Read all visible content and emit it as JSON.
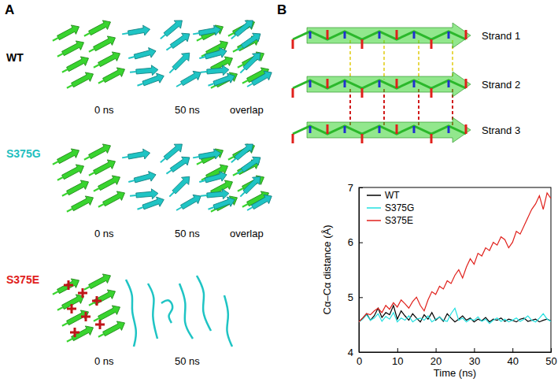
{
  "panel_labels": [
    "A",
    "B"
  ],
  "panel_a": {
    "rows": [
      {
        "label": "WT",
        "color": "#000000",
        "times": [
          "0 ns",
          "50 ns",
          "overlap"
        ]
      },
      {
        "label": "S375G",
        "color": "#1fbfbf",
        "times": [
          "0 ns",
          "50 ns",
          "overlap"
        ]
      },
      {
        "label": "S375E",
        "color": "#e0201b",
        "times": [
          "0 ns",
          "50 ns"
        ]
      }
    ]
  },
  "panel_b_structure": {
    "strands": [
      "Strand 1",
      "Strand 2",
      "Strand 3"
    ]
  },
  "chart_data": {
    "type": "line",
    "x_label": "Time (ns)",
    "y_label": "Cα–Cα distance (Å)",
    "x": [
      0,
      1,
      2,
      3,
      4,
      5,
      6,
      7,
      8,
      9,
      10,
      11,
      12,
      13,
      14,
      15,
      16,
      17,
      18,
      19,
      20,
      21,
      22,
      23,
      24,
      25,
      26,
      27,
      28,
      29,
      30,
      31,
      32,
      33,
      34,
      35,
      36,
      37,
      38,
      39,
      40,
      41,
      42,
      43,
      44,
      45,
      46,
      47,
      48,
      49,
      50
    ],
    "series": [
      {
        "name": "WT",
        "color": "#000000",
        "values": [
          4.55,
          4.62,
          4.7,
          4.58,
          4.66,
          4.8,
          4.63,
          4.72,
          4.68,
          4.85,
          4.6,
          4.75,
          4.66,
          4.58,
          4.7,
          4.62,
          4.55,
          4.68,
          4.6,
          4.72,
          4.58,
          4.64,
          4.56,
          4.7,
          4.62,
          4.55,
          4.6,
          4.66,
          4.58,
          4.62,
          4.55,
          4.6,
          4.57,
          4.63,
          4.55,
          4.6,
          4.58,
          4.62,
          4.56,
          4.6,
          4.58,
          4.55,
          4.6,
          4.62,
          4.56,
          4.58,
          4.6,
          4.55,
          4.58,
          4.6,
          4.57
        ]
      },
      {
        "name": "S375G",
        "color": "#22e0e0",
        "values": [
          4.55,
          4.6,
          4.68,
          4.58,
          4.62,
          4.7,
          4.56,
          4.65,
          4.6,
          4.72,
          4.55,
          4.62,
          4.58,
          4.66,
          4.55,
          4.6,
          4.62,
          4.58,
          4.66,
          4.55,
          4.6,
          4.64,
          4.58,
          4.56,
          4.7,
          4.8,
          4.58,
          4.62,
          4.55,
          4.6,
          4.58,
          4.64,
          4.56,
          4.6,
          4.52,
          4.58,
          4.62,
          4.56,
          4.6,
          4.55,
          4.58,
          4.62,
          4.56,
          4.6,
          4.66,
          4.58,
          4.55,
          4.62,
          4.7,
          4.6,
          4.56
        ]
      },
      {
        "name": "S375E",
        "color": "#e0201b",
        "values": [
          4.55,
          4.62,
          4.7,
          4.68,
          4.75,
          4.8,
          4.72,
          4.85,
          4.78,
          4.9,
          4.82,
          4.95,
          4.88,
          4.8,
          4.92,
          5.0,
          4.85,
          4.75,
          4.95,
          5.1,
          5.05,
          5.2,
          5.15,
          5.3,
          5.25,
          5.4,
          5.5,
          5.35,
          5.55,
          5.7,
          5.6,
          5.8,
          5.75,
          5.9,
          5.85,
          6.0,
          5.95,
          6.1,
          6.05,
          5.9,
          6.0,
          6.2,
          6.15,
          6.3,
          6.45,
          6.6,
          6.7,
          6.85,
          6.6,
          6.9,
          6.8
        ]
      }
    ],
    "xlim": [
      0,
      50
    ],
    "xticks": [
      0,
      10,
      20,
      30,
      40,
      50
    ],
    "ylim": [
      4,
      7
    ],
    "yticks": [
      4,
      5,
      6,
      7
    ],
    "legend": "upper left"
  }
}
